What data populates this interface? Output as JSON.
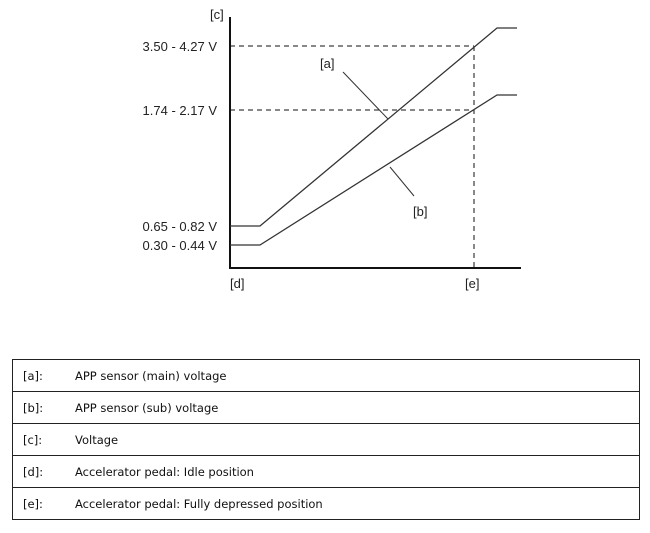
{
  "diagram": {
    "y_axis_label": "[c]",
    "x_axis_labels": {
      "idle": "[d]",
      "full": "[e]"
    },
    "voltage_labels": [
      "3.50 - 4.27 V",
      "1.74 - 2.17 V",
      "0.65 - 0.82 V",
      "0.30 - 0.44 V"
    ],
    "curve_labels": {
      "main": "[a]",
      "sub": "[b]"
    }
  },
  "legend": [
    {
      "key": "[a]:",
      "text": "APP sensor (main) voltage"
    },
    {
      "key": "[b]:",
      "text": "APP sensor (sub) voltage"
    },
    {
      "key": "[c]:",
      "text": "Voltage"
    },
    {
      "key": "[d]:",
      "text": "Accelerator pedal: Idle position"
    },
    {
      "key": "[e]:",
      "text": "Accelerator pedal: Fully depressed position"
    }
  ]
}
